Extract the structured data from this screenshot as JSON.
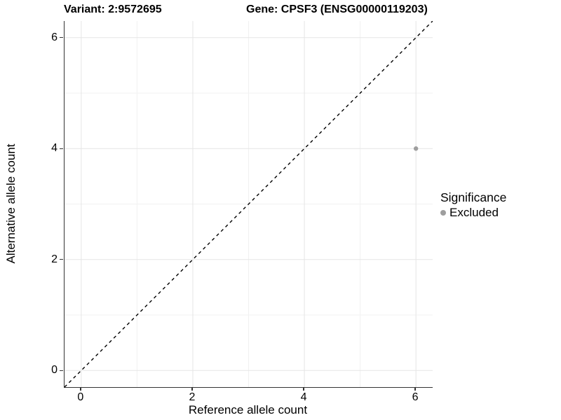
{
  "titles": {
    "variant": "Variant: 2:9572695",
    "gene": "Gene: CPSF3 (ENSG00000119203)"
  },
  "chart_data": {
    "type": "scatter",
    "title": "Variant: 2:9572695   Gene: CPSF3 (ENSG00000119203)",
    "xlabel": "Reference allele count",
    "ylabel": "Alternative allele count",
    "xlim": [
      -0.3,
      6.3
    ],
    "ylim": [
      -0.3,
      6.3
    ],
    "x_ticks": [
      0,
      2,
      4,
      6
    ],
    "y_ticks": [
      0,
      2,
      4,
      6
    ],
    "x_minor_ticks": [
      1,
      3,
      5
    ],
    "y_minor_ticks": [
      1,
      3,
      5
    ],
    "grid": true,
    "series": [
      {
        "name": "Excluded",
        "color": "#9e9e9e",
        "marker": "circle",
        "points": [
          {
            "x": 6,
            "y": 4
          }
        ]
      }
    ],
    "reference_line": {
      "type": "identity",
      "from": [
        -0.3,
        -0.3
      ],
      "to": [
        6.3,
        6.3
      ],
      "style": "dashed",
      "color": "#000000"
    },
    "legend": {
      "title": "Significance",
      "position": "right",
      "items": [
        {
          "label": "Excluded",
          "color": "#9e9e9e",
          "marker": "circle"
        }
      ]
    }
  },
  "colors": {
    "background": "#ffffff",
    "grid_major": "#e5e5e5",
    "grid_minor": "#f1f1f1",
    "axis_line": "#333333",
    "point": "#9e9e9e",
    "text": "#000000"
  }
}
